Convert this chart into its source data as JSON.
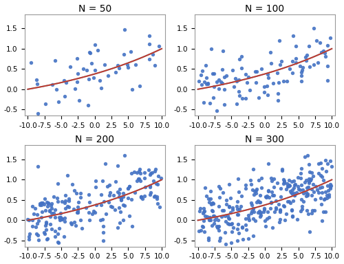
{
  "panels": [
    {
      "title": "N = 50",
      "n": 50
    },
    {
      "title": "N = 100",
      "n": 100
    },
    {
      "title": "N = 200",
      "n": 200
    },
    {
      "title": "N = 300",
      "n": 300
    }
  ],
  "xlim": [
    -10.5,
    10.5
  ],
  "ylim": [
    -0.65,
    1.85
  ],
  "xticks": [
    -10.0,
    -7.5,
    -5.0,
    -2.5,
    0.0,
    2.5,
    5.0,
    7.5,
    10.0
  ],
  "scatter_color": "#4472C4",
  "true_line_color": "#6AAFD6",
  "scss_line_color": "#C0392B",
  "scatter_alpha": 0.9,
  "scatter_size": 15,
  "true_lw": 1.4,
  "scss_lw": 1.4,
  "title_fontsize": 10,
  "tick_fontsize": 7.5,
  "noise_std": 0.38,
  "figsize": [
    5.0,
    3.84
  ],
  "dpi": 100,
  "seeds": [
    7,
    42,
    13,
    99
  ]
}
